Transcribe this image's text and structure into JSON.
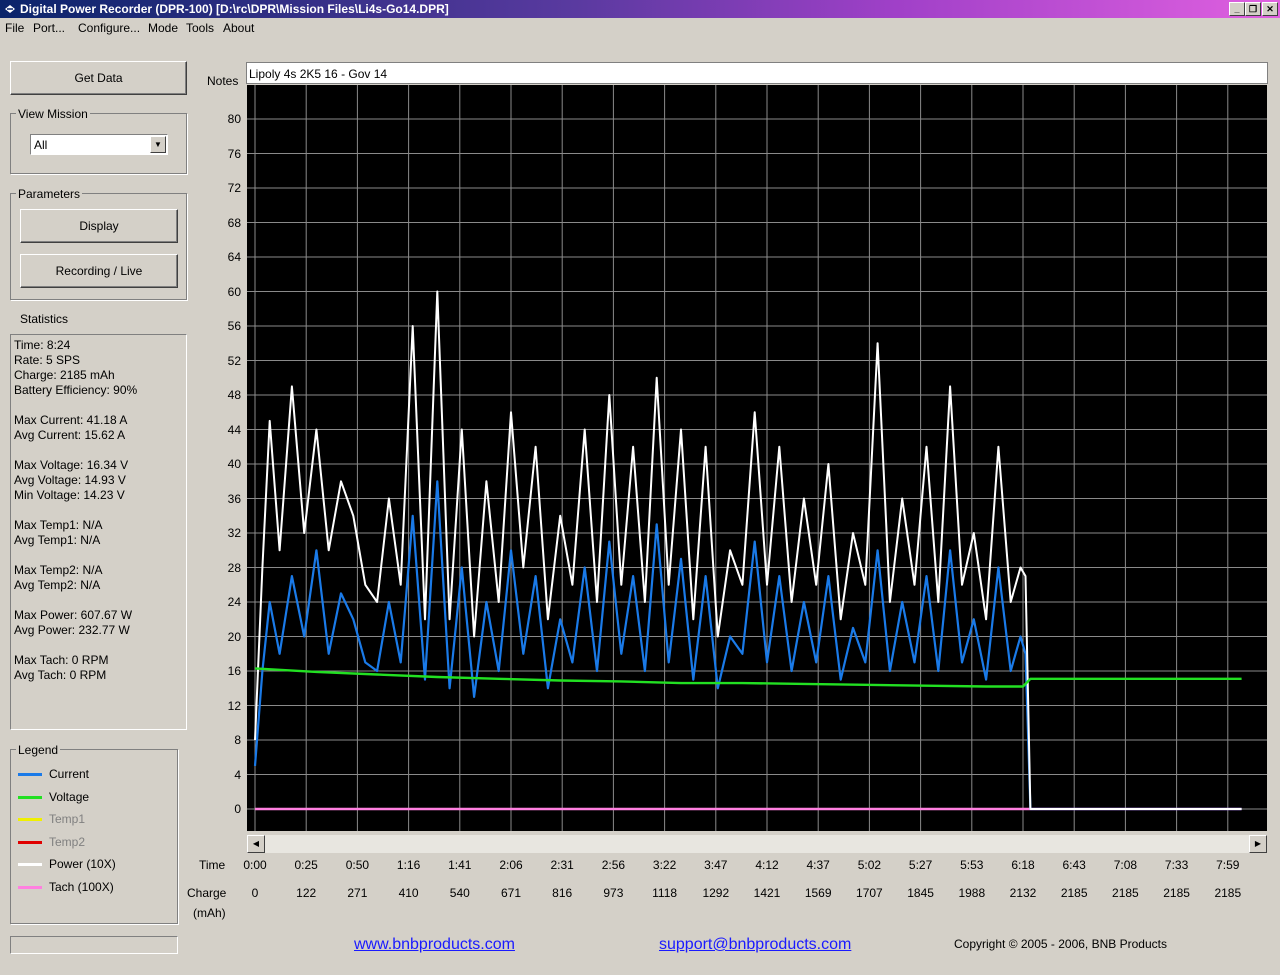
{
  "window": {
    "title": "Digital Power Recorder (DPR-100) [D:\\rc\\DPR\\Mission Files\\Li4s-Go14.DPR]",
    "minimize": "_",
    "maximize": "❐",
    "close": "✕"
  },
  "menu": [
    "File",
    "Port...",
    "Configure...",
    "Mode",
    "Tools",
    "About"
  ],
  "sidebar": {
    "get_data": "Get Data",
    "view_mission_label": "View Mission",
    "view_mission_value": "All",
    "parameters_label": "Parameters",
    "display_button": "Display",
    "recording_button": "Recording / Live",
    "statistics_label": "Statistics",
    "statistics": [
      "Time: 8:24",
      "Rate: 5 SPS",
      "Charge: 2185 mAh",
      "Battery Efficiency: 90%",
      "",
      "Max Current: 41.18 A",
      "Avg Current: 15.62 A",
      "",
      "Max Voltage: 16.34 V",
      "Avg Voltage: 14.93 V",
      "Min Voltage: 14.23 V",
      "",
      "Max Temp1: N/A",
      "Avg Temp1: N/A",
      "",
      "Max Temp2: N/A",
      "Avg Temp2: N/A",
      "",
      "Max Power: 607.67 W",
      "Avg Power: 232.77 W",
      "",
      "Max Tach: 0 RPM",
      "Avg Tach: 0 RPM"
    ],
    "legend_label": "Legend",
    "legend": [
      {
        "label": "Current",
        "color": "#1a7ae8",
        "enabled": true
      },
      {
        "label": "Voltage",
        "color": "#22e022",
        "enabled": true
      },
      {
        "label": "Temp1",
        "color": "#f0f000",
        "enabled": false
      },
      {
        "label": "Temp2",
        "color": "#e00000",
        "enabled": false
      },
      {
        "label": "Power  (10X)",
        "color": "#ffffff",
        "enabled": true
      },
      {
        "label": "Tach    (100X)",
        "color": "#ff80e0",
        "enabled": true
      }
    ]
  },
  "notes": {
    "label": "Notes",
    "value": "Lipoly 4s 2K5 16 - Gov 14"
  },
  "chart_data": {
    "type": "line",
    "ylim": [
      0,
      84
    ],
    "y_ticks": [
      0,
      4,
      8,
      12,
      16,
      20,
      24,
      28,
      32,
      36,
      40,
      44,
      48,
      52,
      56,
      60,
      64,
      68,
      72,
      76,
      80
    ],
    "x_label": "Time",
    "x_ticks": [
      "0:00",
      "0:25",
      "0:50",
      "1:16",
      "1:41",
      "2:06",
      "2:31",
      "2:56",
      "3:22",
      "3:47",
      "4:12",
      "4:37",
      "5:02",
      "5:27",
      "5:53",
      "6:18",
      "6:43",
      "7:08",
      "7:33",
      "7:59"
    ],
    "charge_label": "Charge",
    "charge_unit": "(mAh)",
    "charge_ticks": [
      "0",
      "122",
      "271",
      "410",
      "540",
      "671",
      "816",
      "973",
      "1118",
      "1292",
      "1421",
      "1569",
      "1707",
      "1845",
      "1988",
      "2132",
      "2185",
      "2185",
      "2185",
      "2185"
    ],
    "series": [
      {
        "name": "Current",
        "color": "#1a7ae8",
        "x": [
          0,
          0.06,
          0.12,
          0.2,
          0.3,
          0.4,
          0.5,
          0.6,
          0.7,
          0.8,
          0.9,
          1.0,
          1.1,
          1.2,
          1.3,
          1.4,
          1.5,
          1.6,
          1.7,
          1.8,
          1.9,
          2.0,
          2.1,
          2.2,
          2.3,
          2.4,
          2.5,
          2.6,
          2.7,
          2.8,
          2.9,
          3.0,
          3.1,
          3.2,
          3.3,
          3.4,
          3.5,
          3.6,
          3.7,
          3.8,
          3.9,
          4.0,
          4.1,
          4.2,
          4.3,
          4.4,
          4.5,
          4.6,
          4.7,
          4.8,
          4.9,
          5.0,
          5.1,
          5.2,
          5.3,
          5.4,
          5.5,
          5.6,
          5.7,
          5.8,
          5.9,
          6.0,
          6.1,
          6.2,
          6.28,
          6.32,
          6.36,
          6.5,
          7.0,
          7.5,
          8.1
        ],
        "y": [
          5,
          16,
          24,
          18,
          27,
          20,
          30,
          18,
          25,
          22,
          17,
          16,
          24,
          17,
          34,
          15,
          38,
          14,
          28,
          13,
          24,
          16,
          30,
          18,
          27,
          14,
          22,
          17,
          28,
          16,
          31,
          18,
          27,
          16,
          33,
          17,
          29,
          15,
          27,
          14,
          20,
          18,
          31,
          17,
          27,
          16,
          24,
          17,
          27,
          15,
          21,
          17,
          30,
          16,
          24,
          17,
          27,
          16,
          30,
          17,
          22,
          15,
          28,
          16,
          20,
          18,
          0,
          0,
          0,
          0,
          0
        ]
      },
      {
        "name": "Voltage",
        "color": "#22e022",
        "x": [
          0,
          0.5,
          1.0,
          1.5,
          2.0,
          2.5,
          3.0,
          3.5,
          4.0,
          4.5,
          5.0,
          5.5,
          6.0,
          6.3,
          6.36,
          7.0,
          8.1
        ],
        "y": [
          16.3,
          15.9,
          15.6,
          15.3,
          15.1,
          14.9,
          14.8,
          14.6,
          14.6,
          14.5,
          14.4,
          14.3,
          14.2,
          14.2,
          15.1,
          15.1,
          15.1
        ]
      },
      {
        "name": "Power  (10X)",
        "color": "#ffffff",
        "x": [
          0,
          0.06,
          0.12,
          0.2,
          0.3,
          0.4,
          0.5,
          0.6,
          0.7,
          0.8,
          0.9,
          1.0,
          1.1,
          1.2,
          1.3,
          1.4,
          1.5,
          1.6,
          1.7,
          1.8,
          1.9,
          2.0,
          2.1,
          2.2,
          2.3,
          2.4,
          2.5,
          2.6,
          2.7,
          2.8,
          2.9,
          3.0,
          3.1,
          3.2,
          3.3,
          3.4,
          3.5,
          3.6,
          3.7,
          3.8,
          3.9,
          4.0,
          4.1,
          4.2,
          4.3,
          4.4,
          4.5,
          4.6,
          4.7,
          4.8,
          4.9,
          5.0,
          5.1,
          5.2,
          5.3,
          5.4,
          5.5,
          5.6,
          5.7,
          5.8,
          5.9,
          6.0,
          6.1,
          6.2,
          6.28,
          6.32,
          6.36,
          6.5,
          7.0,
          7.5,
          8.1
        ],
        "y": [
          8,
          28,
          45,
          30,
          49,
          32,
          44,
          30,
          38,
          34,
          26,
          24,
          36,
          26,
          56,
          22,
          60,
          22,
          44,
          20,
          38,
          24,
          46,
          28,
          42,
          22,
          34,
          26,
          44,
          24,
          48,
          26,
          42,
          24,
          50,
          26,
          44,
          22,
          42,
          20,
          30,
          26,
          46,
          26,
          42,
          24,
          36,
          26,
          40,
          22,
          32,
          26,
          54,
          24,
          36,
          26,
          42,
          24,
          49,
          26,
          32,
          22,
          42,
          24,
          28,
          27,
          0,
          0,
          0,
          0,
          0
        ]
      },
      {
        "name": "Tach    (100X)",
        "color": "#ff80e0",
        "x": [
          0,
          8.1
        ],
        "y": [
          0,
          0
        ]
      }
    ]
  },
  "footer": {
    "website": "www.bnbproducts.com",
    "email": "support@bnbproducts.com",
    "copyright": "Copyright © 2005 - 2006, BNB Products"
  }
}
